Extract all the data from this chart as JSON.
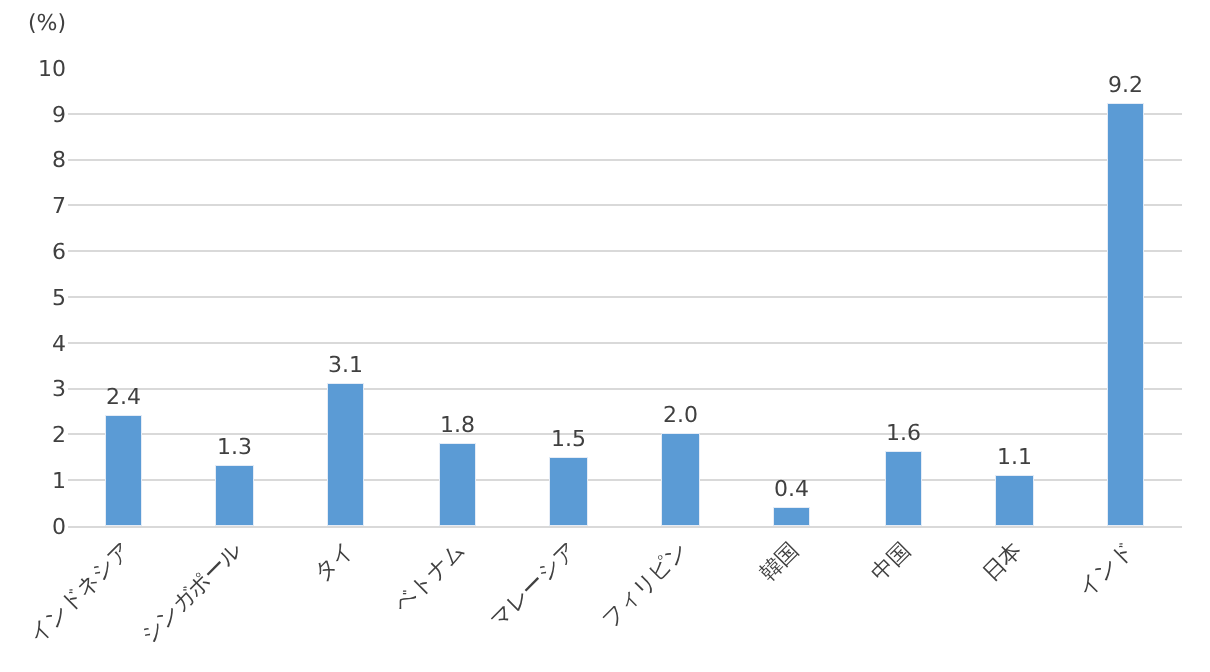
{
  "chart_data": {
    "type": "bar",
    "ylabel": "(%)",
    "categories": [
      "インドネシア",
      "シンガポール",
      "タイ",
      "ベトナム",
      "マレーシア",
      "フィリピン",
      "韓国",
      "中国",
      "日本",
      "インド"
    ],
    "values": [
      2.4,
      1.3,
      3.1,
      1.8,
      1.5,
      2.0,
      0.4,
      1.6,
      1.1,
      9.2
    ],
    "value_labels": [
      "2.4",
      "1.3",
      "3.1",
      "1.8",
      "1.5",
      "2.0",
      "0.4",
      "1.6",
      "1.1",
      "9.2"
    ],
    "color": "#5b9bd5",
    "ylim": [
      0,
      10
    ],
    "yticks": [
      0,
      1,
      2,
      3,
      4,
      5,
      6,
      7,
      8,
      9,
      10
    ],
    "grid": "y",
    "legend": false
  }
}
